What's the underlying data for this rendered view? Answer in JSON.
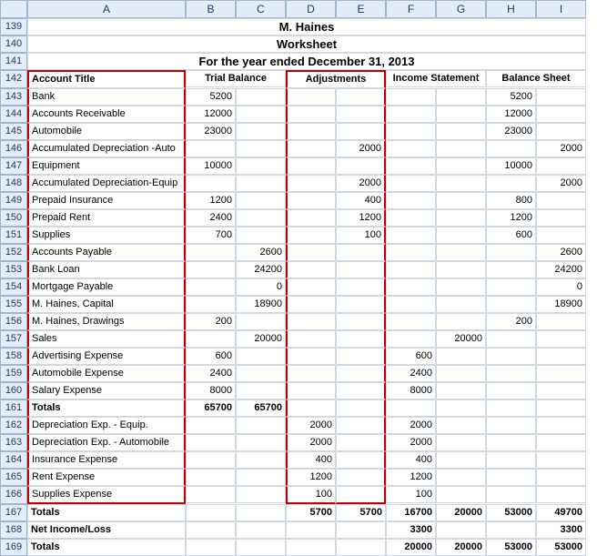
{
  "columns": [
    "A",
    "B",
    "C",
    "D",
    "E",
    "F",
    "G",
    "H",
    "I"
  ],
  "rowStart": 139,
  "rowEnd": 169,
  "titles": {
    "r139": "M. Haines",
    "r140": "Worksheet",
    "r141": "For the year ended December 31, 2013"
  },
  "hdr": {
    "A": "Account Title",
    "BC": "Trial Balance",
    "DE": "Adjustments",
    "FG": "Income Statement",
    "HI": "Balance Sheet"
  },
  "rows": [
    {
      "n": 143,
      "A": "Bank",
      "B": "5200",
      "H": "5200"
    },
    {
      "n": 144,
      "A": "Accounts Receivable",
      "B": "12000",
      "H": "12000"
    },
    {
      "n": 145,
      "A": "Automobile",
      "B": "23000",
      "H": "23000"
    },
    {
      "n": 146,
      "A": "Accumulated Depreciation -Auto",
      "E": "2000",
      "I": "2000"
    },
    {
      "n": 147,
      "A": "Equipment",
      "B": "10000",
      "H": "10000"
    },
    {
      "n": 148,
      "A": "Accumulated Depreciation-Equip",
      "E": "2000",
      "I": "2000"
    },
    {
      "n": 149,
      "A": "Prepaid Insurance",
      "B": "1200",
      "E": "400",
      "H": "800"
    },
    {
      "n": 150,
      "A": "Prepaid Rent",
      "B": "2400",
      "E": "1200",
      "H": "1200"
    },
    {
      "n": 151,
      "A": "Supplies",
      "B": "700",
      "E": "100",
      "H": "600"
    },
    {
      "n": 152,
      "A": "Accounts Payable",
      "C": "2600",
      "I": "2600"
    },
    {
      "n": 153,
      "A": "Bank Loan",
      "C": "24200",
      "I": "24200"
    },
    {
      "n": 154,
      "A": "Mortgage Payable",
      "C": "0",
      "I": "0"
    },
    {
      "n": 155,
      "A": "M. Haines, Capital",
      "C": "18900",
      "I": "18900"
    },
    {
      "n": 156,
      "A": "M. Haines, Drawings",
      "B": "200",
      "H": "200"
    },
    {
      "n": 157,
      "A": "Sales",
      "C": "20000",
      "G": "20000"
    },
    {
      "n": 158,
      "A": "Advertising Expense",
      "B": "600",
      "F": "600"
    },
    {
      "n": 159,
      "A": "Automobile Expense",
      "B": "2400",
      "F": "2400"
    },
    {
      "n": 160,
      "A": "Salary Expense",
      "B": "8000",
      "F": "8000"
    },
    {
      "n": 161,
      "A": "Totals",
      "B": "65700",
      "C": "65700",
      "bold": true
    },
    {
      "n": 162,
      "A": "Depreciation Exp. - Equip.",
      "D": "2000",
      "F": "2000"
    },
    {
      "n": 163,
      "A": "Depreciation Exp. - Automobile",
      "D": "2000",
      "F": "2000"
    },
    {
      "n": 164,
      "A": "Insurance Expense",
      "D": "400",
      "F": "400"
    },
    {
      "n": 165,
      "A": "Rent Expense",
      "D": "1200",
      "F": "1200"
    },
    {
      "n": 166,
      "A": "Supplies Expense",
      "D": "100",
      "F": "100"
    },
    {
      "n": 167,
      "A": "Totals",
      "D": "5700",
      "E": "5700",
      "F": "16700",
      "G": "20000",
      "H": "53000",
      "I": "49700",
      "bold": true
    },
    {
      "n": 168,
      "A": "Net Income/Loss",
      "F": "3300",
      "I": "3300",
      "bold": true
    },
    {
      "n": 169,
      "A": "Totals",
      "F": "20000",
      "G": "20000",
      "H": "53000",
      "I": "53000",
      "bold": true
    }
  ],
  "redBox1": {
    "r1": 142,
    "r2": 166,
    "c": "A"
  },
  "redBox2": {
    "r1": 142,
    "r2": 166,
    "c1": "D",
    "c2": "E"
  }
}
